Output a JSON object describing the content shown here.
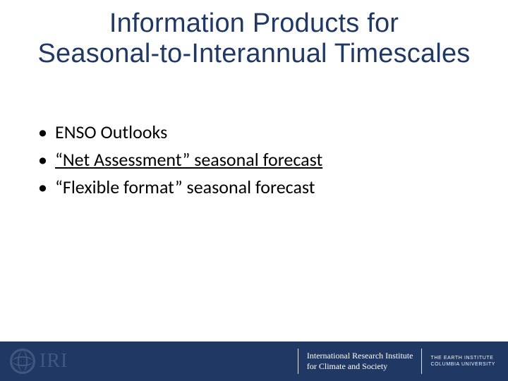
{
  "title_line1": "Information Products for",
  "title_line2": "Seasonal-to-Interannual Timescales",
  "title_color": "#1f3864",
  "title_fontsize": 38,
  "body_fontsize": 26,
  "body_color": "#000000",
  "bullets": [
    {
      "text": "ENSO Outlooks",
      "link": false
    },
    {
      "text": "“Net Assessment” seasonal forecast",
      "link": true
    },
    {
      "text": "“Flexible format” seasonal forecast",
      "link": false
    }
  ],
  "footer": {
    "background_color": "#1f3864",
    "left_logo_text": "IRI",
    "right_block": {
      "line1": "International Research Institute",
      "line2": "for Climate and Society",
      "sub1": "THE EARTH INSTITUTE",
      "sub2": "COLUMBIA UNIVERSITY"
    }
  },
  "link_color": "#000000",
  "slide_width": 720,
  "slide_height": 540
}
